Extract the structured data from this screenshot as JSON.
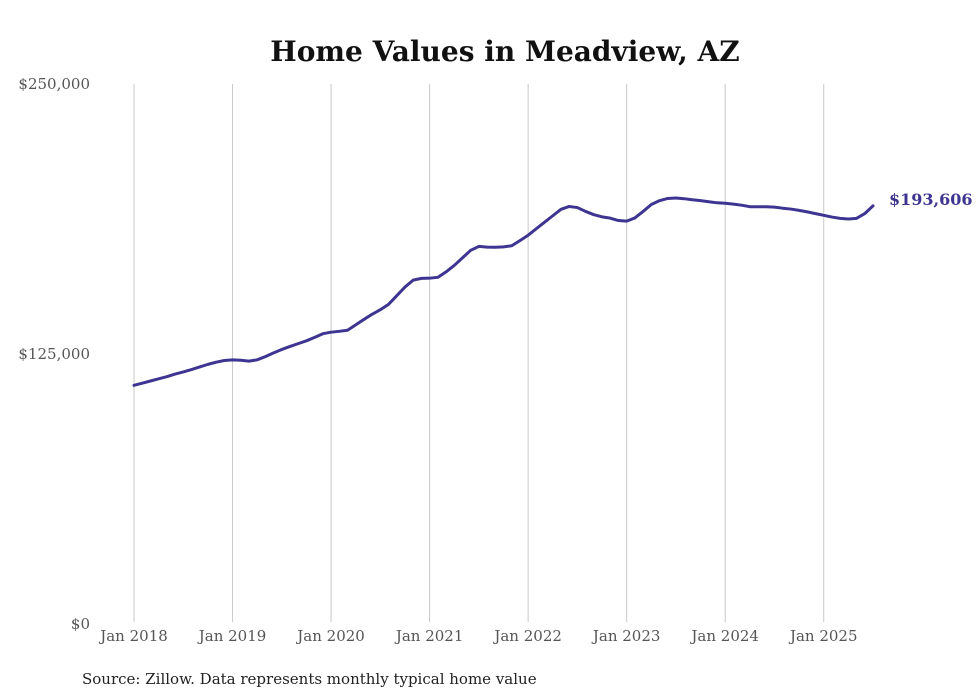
{
  "chart_data": {
    "type": "line",
    "title": "Home Values in Meadview, AZ",
    "source": "Source: Zillow. Data represents monthly typical home value",
    "xlabel": "",
    "ylabel": "",
    "ylim": [
      0,
      250000
    ],
    "y_ticks": [
      {
        "value": 0,
        "label": "$0"
      },
      {
        "value": 125000,
        "label": "$125,000"
      },
      {
        "value": 250000,
        "label": "$250,000"
      }
    ],
    "x_range": [
      "2018-01",
      "2025-07"
    ],
    "x_ticks": [
      {
        "date": "2018-01",
        "label": "Jan 2018"
      },
      {
        "date": "2019-01",
        "label": "Jan 2019"
      },
      {
        "date": "2020-01",
        "label": "Jan 2020"
      },
      {
        "date": "2021-01",
        "label": "Jan 2021"
      },
      {
        "date": "2022-01",
        "label": "Jan 2022"
      },
      {
        "date": "2023-01",
        "label": "Jan 2023"
      },
      {
        "date": "2024-01",
        "label": "Jan 2024"
      },
      {
        "date": "2025-01",
        "label": "Jan 2025"
      }
    ],
    "vertical_grid": true,
    "line_color": "#3d3591",
    "end_label": "$193,606",
    "series": [
      {
        "x": [
          "2018-01",
          "2018-02",
          "2018-03",
          "2018-04",
          "2018-05",
          "2018-06",
          "2018-07",
          "2018-08",
          "2018-09",
          "2018-10",
          "2018-11",
          "2018-12",
          "2019-01",
          "2019-02",
          "2019-03",
          "2019-04",
          "2019-05",
          "2019-06",
          "2019-07",
          "2019-08",
          "2019-09",
          "2019-10",
          "2019-11",
          "2019-12",
          "2020-01",
          "2020-02",
          "2020-03",
          "2020-04",
          "2020-05",
          "2020-06",
          "2020-07",
          "2020-08",
          "2020-09",
          "2020-10",
          "2020-11",
          "2020-12",
          "2021-01",
          "2021-02",
          "2021-03",
          "2021-04",
          "2021-05",
          "2021-06",
          "2021-07",
          "2021-08",
          "2021-09",
          "2021-10",
          "2021-11",
          "2021-12",
          "2022-01",
          "2022-02",
          "2022-03",
          "2022-04",
          "2022-05",
          "2022-06",
          "2022-07",
          "2022-08",
          "2022-09",
          "2022-10",
          "2022-11",
          "2022-12",
          "2023-01",
          "2023-02",
          "2023-03",
          "2023-04",
          "2023-05",
          "2023-06",
          "2023-07",
          "2023-08",
          "2023-09",
          "2023-10",
          "2023-11",
          "2023-12",
          "2024-01",
          "2024-02",
          "2024-03",
          "2024-04",
          "2024-05",
          "2024-06",
          "2024-07",
          "2024-08",
          "2024-09",
          "2024-10",
          "2024-11",
          "2024-12",
          "2025-01",
          "2025-02",
          "2025-03",
          "2025-04",
          "2025-05",
          "2025-06",
          "2025-07"
        ],
        "values": [
          110500,
          111500,
          112500,
          113500,
          114500,
          115700,
          116700,
          117800,
          119000,
          120200,
          121200,
          122000,
          122300,
          122100,
          121700,
          122300,
          123800,
          125500,
          127100,
          128500,
          129800,
          131100,
          132700,
          134400,
          135100,
          135500,
          136000,
          138500,
          141000,
          143400,
          145500,
          148000,
          152000,
          156000,
          159200,
          160000,
          160100,
          160500,
          163000,
          166000,
          169500,
          173000,
          174800,
          174500,
          174400,
          174600,
          175100,
          177500,
          180000,
          183000,
          186000,
          189000,
          192000,
          193300,
          192800,
          191000,
          189500,
          188500,
          187900,
          186800,
          186500,
          188000,
          191000,
          194200,
          196000,
          197000,
          197200,
          196900,
          196400,
          196000,
          195500,
          195000,
          194800,
          194400,
          193900,
          193200,
          193200,
          193200,
          193000,
          192500,
          192100,
          191500,
          190800,
          190000,
          189200,
          188400,
          187800,
          187500,
          187800,
          190000,
          193606
        ]
      }
    ]
  }
}
